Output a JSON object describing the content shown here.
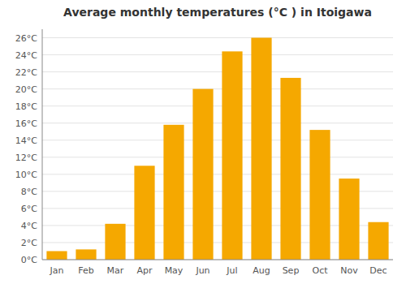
{
  "chart_data": {
    "type": "bar",
    "title": "Average monthly temperatures (°C ) in Itoigawa",
    "categories": [
      "Jan",
      "Feb",
      "Mar",
      "Apr",
      "May",
      "Jun",
      "Jul",
      "Aug",
      "Sep",
      "Oct",
      "Nov",
      "Dec"
    ],
    "values": [
      1.0,
      1.2,
      4.2,
      11.0,
      15.8,
      20.0,
      24.4,
      26.0,
      21.3,
      15.2,
      9.5,
      4.4
    ],
    "color": "#F5A800",
    "ylim": [
      0,
      27
    ],
    "yticks": [
      {
        "value": 0,
        "label": "0°C"
      },
      {
        "value": 2,
        "label": "2°C"
      },
      {
        "value": 4,
        "label": "4°C"
      },
      {
        "value": 6,
        "label": "6°C"
      },
      {
        "value": 8,
        "label": "8°C"
      },
      {
        "value": 10,
        "label": "10°C"
      },
      {
        "value": 12,
        "label": "12°C"
      },
      {
        "value": 14,
        "label": "14°C"
      },
      {
        "value": 16,
        "label": "16°C"
      },
      {
        "value": 18,
        "label": "18°C"
      },
      {
        "value": 20,
        "label": "20°C"
      },
      {
        "value": 22,
        "label": "22°C"
      },
      {
        "value": 24,
        "label": "24°C"
      },
      {
        "value": 26,
        "label": "26°C"
      }
    ],
    "grid": true
  }
}
